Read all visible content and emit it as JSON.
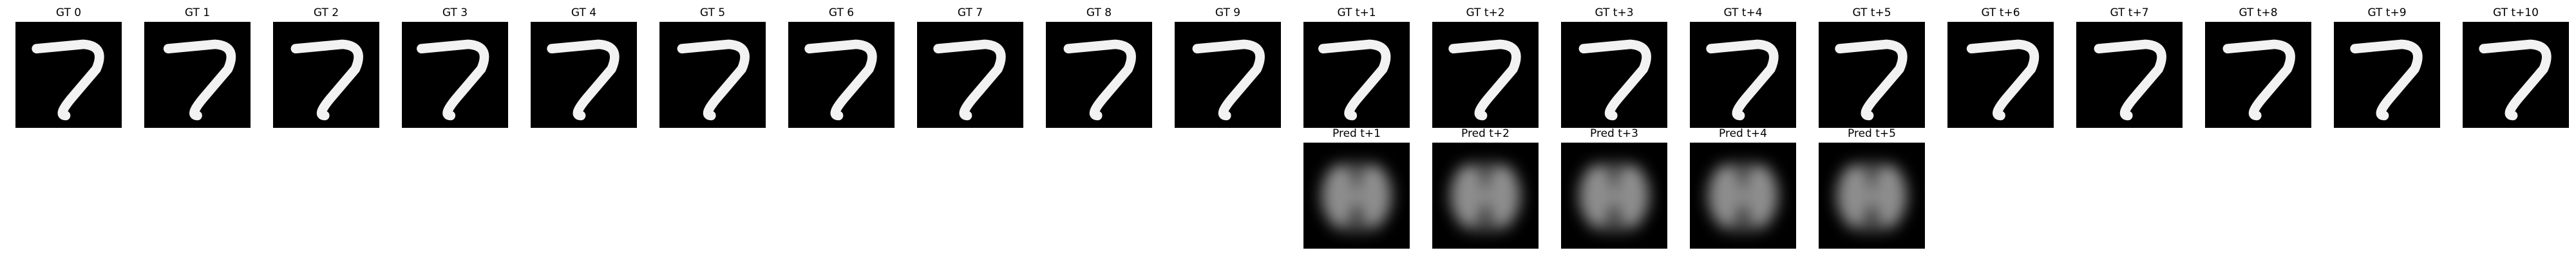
{
  "ground_truth_row": {
    "panels": [
      {
        "title": "GT 0",
        "frame": "digit-seven",
        "shift": 0
      },
      {
        "title": "GT 1",
        "frame": "digit-seven",
        "shift": 1
      },
      {
        "title": "GT 2",
        "frame": "digit-seven",
        "shift": 2
      },
      {
        "title": "GT 3",
        "frame": "digit-seven",
        "shift": 3
      },
      {
        "title": "GT 4",
        "frame": "digit-seven",
        "shift": 4
      },
      {
        "title": "GT 5",
        "frame": "digit-seven",
        "shift": 5
      },
      {
        "title": "GT 6",
        "frame": "digit-seven",
        "shift": 6
      },
      {
        "title": "GT 7",
        "frame": "digit-seven",
        "shift": 7
      },
      {
        "title": "GT 8",
        "frame": "digit-seven",
        "shift": 8
      },
      {
        "title": "GT 9",
        "frame": "digit-seven",
        "shift": 9
      },
      {
        "title": "GT t+1",
        "frame": "digit-seven",
        "shift": 10
      },
      {
        "title": "GT t+2",
        "frame": "digit-seven",
        "shift": 11
      },
      {
        "title": "GT t+3",
        "frame": "digit-seven",
        "shift": 12
      },
      {
        "title": "GT t+4",
        "frame": "digit-seven",
        "shift": 13
      },
      {
        "title": "GT t+5",
        "frame": "digit-seven",
        "shift": 14
      },
      {
        "title": "GT t+6",
        "frame": "digit-seven",
        "shift": 15
      },
      {
        "title": "GT t+7",
        "frame": "digit-seven",
        "shift": 16
      },
      {
        "title": "GT t+8",
        "frame": "digit-seven",
        "shift": 17
      },
      {
        "title": "GT t+9",
        "frame": "digit-seven",
        "shift": 18
      },
      {
        "title": "GT t+10",
        "frame": "digit-seven",
        "shift": 19
      }
    ]
  },
  "prediction_row": {
    "panels": [
      {
        "title": "Pred t+1",
        "frame": "blurry-prediction"
      },
      {
        "title": "Pred t+2",
        "frame": "blurry-prediction"
      },
      {
        "title": "Pred t+3",
        "frame": "blurry-prediction"
      },
      {
        "title": "Pred t+4",
        "frame": "blurry-prediction"
      },
      {
        "title": "Pred t+5",
        "frame": "blurry-prediction"
      }
    ]
  },
  "colors": {
    "frame_background": "#000000",
    "digit_stroke": "#f2f2f2",
    "prediction_glow": "#d8d8d8"
  }
}
